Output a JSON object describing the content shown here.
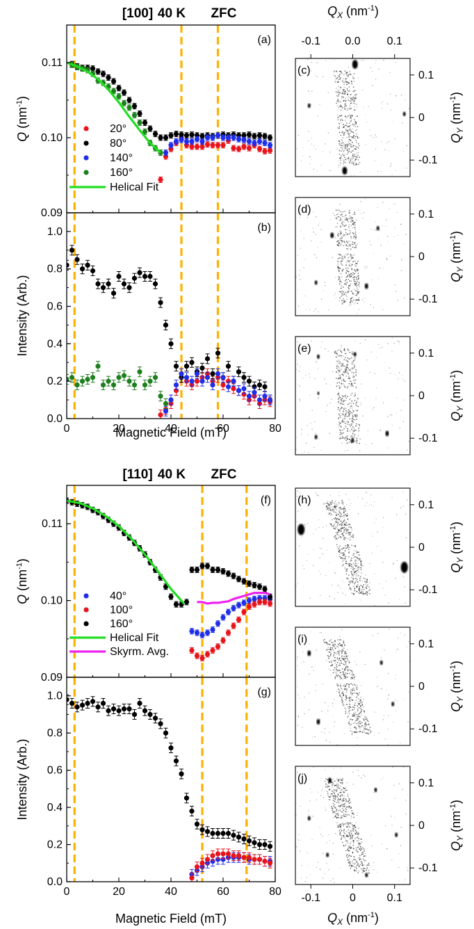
{
  "figure": {
    "headers": [
      {
        "direction": "[100]",
        "temperature": "40 K",
        "protocol": "ZFC"
      },
      {
        "direction": "[110]",
        "temperature": "40 K",
        "protocol": "ZFC"
      }
    ],
    "xlabel": "Magnetic Field (mT)",
    "qx_label": "Q_X (nm^-1)",
    "qy_label": "Q_Y (nm^-1)",
    "q_ylabel": "Q (nm^-1)",
    "i_ylabel": "Intensity (Arb.)",
    "dashed_color": "#FFB000",
    "colors": {
      "red": "#E8141B",
      "black": "#000000",
      "blue": "#1F2EE8",
      "green": "#1E7F1E",
      "fit": "#22DD22",
      "skyrm": "#EE22EE"
    }
  },
  "chart_data": [
    {
      "id": "a",
      "type": "scatter",
      "panel_label": "(a)",
      "xlim": [
        0,
        80
      ],
      "ylim": [
        0.09,
        0.115
      ],
      "xticks": [],
      "yticks": [
        "0.09",
        "0.10",
        "0.11"
      ],
      "ytick_values": [
        0.09,
        0.1,
        0.11
      ],
      "dashed_x": [
        3,
        44,
        58
      ],
      "legend": [
        {
          "label": "20°",
          "color": "#E8141B",
          "kind": "marker"
        },
        {
          "label": "80°",
          "color": "#000000",
          "kind": "marker"
        },
        {
          "label": "140°",
          "color": "#1F2EE8",
          "kind": "marker"
        },
        {
          "label": "160°",
          "color": "#1E7F1E",
          "kind": "marker"
        },
        {
          "label": "Helical Fit",
          "color": "#22DD22",
          "kind": "line"
        }
      ],
      "series": [
        {
          "name": "20°",
          "color": "#E8141B",
          "x": [
            36,
            38,
            40,
            42,
            44,
            46,
            48,
            50,
            52,
            54,
            56,
            58,
            60,
            62,
            64,
            66,
            68,
            70,
            72,
            74,
            76,
            78
          ],
          "y": [
            0.0944,
            0.0975,
            0.0985,
            0.0993,
            0.1,
            0.099,
            0.0988,
            0.0988,
            0.0988,
            0.0991,
            0.099,
            0.099,
            0.099,
            0.0996,
            0.0986,
            0.0985,
            0.0988,
            0.0986,
            0.099,
            0.0985,
            0.0982,
            0.0983
          ]
        },
        {
          "name": "80°",
          "color": "#000000",
          "x": [
            2,
            4,
            6,
            8,
            10,
            12,
            14,
            16,
            18,
            20,
            22,
            24,
            26,
            28,
            30,
            32,
            34,
            36,
            38,
            40,
            42,
            44,
            46,
            48,
            50,
            52,
            54,
            56,
            58,
            60,
            62,
            64,
            66,
            68,
            70,
            72,
            74,
            76,
            78
          ],
          "y": [
            0.1098,
            0.1095,
            0.1093,
            0.1093,
            0.1092,
            0.1088,
            0.1085,
            0.108,
            0.1075,
            0.1066,
            0.106,
            0.105,
            0.1042,
            0.1032,
            0.102,
            0.1012,
            0.1005,
            0.1,
            0.1,
            0.1003,
            0.1005,
            0.1004,
            0.1003,
            0.1004,
            0.1003,
            0.1002,
            0.1003,
            0.1002,
            0.1003,
            0.1004,
            0.1003,
            0.1004,
            0.1003,
            0.1003,
            0.1004,
            0.1002,
            0.1003,
            0.1002,
            0.1
          ]
        },
        {
          "name": "140°",
          "color": "#1F2EE8",
          "x": [
            38,
            40,
            42,
            44,
            46,
            48,
            50,
            52,
            54,
            56,
            58,
            60,
            62,
            64,
            66,
            68,
            70,
            72,
            74,
            76,
            78
          ],
          "y": [
            0.098,
            0.099,
            0.0995,
            0.0997,
            0.0995,
            0.0995,
            0.0998,
            0.0995,
            0.1,
            0.1,
            0.1003,
            0.1,
            0.1,
            0.1,
            0.0998,
            0.0997,
            0.0995,
            0.0993,
            0.0995,
            0.0993,
            0.099
          ]
        },
        {
          "name": "160°",
          "color": "#1E7F1E",
          "x": [
            2,
            4,
            6,
            8,
            10,
            12,
            14,
            16,
            18,
            20,
            22,
            24,
            26,
            28,
            30,
            32,
            34,
            36
          ],
          "y": [
            0.1097,
            0.1094,
            0.1092,
            0.109,
            0.1085,
            0.1076,
            0.1073,
            0.1068,
            0.1062,
            0.1055,
            0.1046,
            0.104,
            0.103,
            0.102,
            0.1008,
            0.0993,
            0.0986,
            0.098
          ]
        },
        {
          "name": "Helical Fit",
          "color": "#22DD22",
          "kind": "line",
          "x": [
            0,
            4,
            8,
            12,
            16,
            20,
            24,
            28,
            32,
            36
          ],
          "y": [
            0.11,
            0.1095,
            0.1088,
            0.1078,
            0.1064,
            0.1047,
            0.1028,
            0.101,
            0.0993,
            0.098
          ]
        }
      ]
    },
    {
      "id": "b",
      "type": "scatter",
      "panel_label": "(b)",
      "xlim": [
        0,
        80
      ],
      "ylim": [
        0,
        1.1
      ],
      "xticks": [
        "0",
        "20",
        "40",
        "60",
        "80"
      ],
      "xtick_values": [
        0,
        20,
        40,
        60,
        80
      ],
      "yticks": [
        "0.0",
        "0.2",
        "0.4",
        "0.6",
        "0.8",
        "1.0"
      ],
      "ytick_values": [
        0,
        0.2,
        0.4,
        0.6,
        0.8,
        1.0
      ],
      "dashed_x": [
        3,
        44,
        58
      ],
      "series": [
        {
          "name": "20°",
          "color": "#E8141B",
          "x": [
            36,
            38,
            40,
            42,
            44,
            46,
            48,
            50,
            52,
            54,
            56,
            58,
            60,
            62,
            64,
            66,
            68,
            70,
            72,
            74,
            76,
            78
          ],
          "y": [
            0.02,
            0.05,
            0.08,
            0.15,
            0.22,
            0.2,
            0.18,
            0.2,
            0.22,
            0.24,
            0.2,
            0.22,
            0.18,
            0.2,
            0.16,
            0.15,
            0.13,
            0.1,
            0.12,
            0.08,
            0.1,
            0.09
          ]
        },
        {
          "name": "80°",
          "color": "#000000",
          "x": [
            0,
            2,
            4,
            6,
            8,
            10,
            12,
            14,
            16,
            18,
            20,
            22,
            24,
            26,
            28,
            30,
            32,
            34,
            36,
            38,
            40,
            42,
            44,
            46,
            48,
            50,
            52,
            54,
            56,
            58,
            60,
            62,
            64,
            66,
            68,
            70,
            72,
            74,
            76,
            78
          ],
          "y": [
            0.82,
            0.9,
            0.85,
            0.8,
            0.82,
            0.79,
            0.72,
            0.7,
            0.72,
            0.67,
            0.76,
            0.72,
            0.7,
            0.75,
            0.78,
            0.76,
            0.76,
            0.72,
            0.62,
            0.5,
            0.4,
            0.28,
            0.22,
            0.28,
            0.3,
            0.25,
            0.27,
            0.32,
            0.24,
            0.35,
            0.22,
            0.28,
            0.2,
            0.25,
            0.22,
            0.2,
            0.17,
            0.18,
            0.17,
            0.1
          ]
        },
        {
          "name": "140°",
          "color": "#1F2EE8",
          "x": [
            38,
            40,
            42,
            44,
            46,
            48,
            50,
            52,
            54,
            56,
            58,
            60,
            62,
            64,
            66,
            68,
            70,
            72,
            74,
            76,
            78
          ],
          "y": [
            0.04,
            0.1,
            0.18,
            0.24,
            0.22,
            0.2,
            0.24,
            0.2,
            0.22,
            0.18,
            0.24,
            0.22,
            0.17,
            0.2,
            0.15,
            0.16,
            0.12,
            0.14,
            0.1,
            0.12,
            0.1
          ]
        },
        {
          "name": "160°",
          "color": "#1E7F1E",
          "x": [
            0,
            2,
            4,
            6,
            8,
            10,
            12,
            14,
            16,
            18,
            20,
            22,
            24,
            26,
            28,
            30,
            32,
            34,
            36,
            38
          ],
          "y": [
            0.21,
            0.22,
            0.18,
            0.2,
            0.21,
            0.22,
            0.28,
            0.18,
            0.2,
            0.18,
            0.22,
            0.23,
            0.2,
            0.18,
            0.25,
            0.18,
            0.2,
            0.22,
            0.12,
            0.08
          ]
        }
      ]
    },
    {
      "id": "f",
      "type": "scatter",
      "panel_label": "(f)",
      "xlim": [
        0,
        80
      ],
      "ylim": [
        0.09,
        0.115
      ],
      "xticks": [],
      "yticks": [
        "0.09",
        "0.10",
        "0.11"
      ],
      "ytick_values": [
        0.09,
        0.1,
        0.11
      ],
      "dashed_x": [
        3,
        52,
        69
      ],
      "legend": [
        {
          "label": "40°",
          "color": "#1F2EE8",
          "kind": "marker"
        },
        {
          "label": "100°",
          "color": "#E8141B",
          "kind": "marker"
        },
        {
          "label": "160°",
          "color": "#000000",
          "kind": "marker"
        },
        {
          "label": "Helical Fit",
          "color": "#22DD22",
          "kind": "line"
        },
        {
          "label": "Skyrm. Avg.",
          "color": "#EE22EE",
          "kind": "line"
        }
      ],
      "series": [
        {
          "name": "40°",
          "color": "#1F2EE8",
          "x": [
            48,
            50,
            52,
            54,
            56,
            58,
            60,
            62,
            64,
            66,
            68,
            70,
            72,
            74,
            76,
            78
          ],
          "y": [
            0.096,
            0.0958,
            0.0955,
            0.0958,
            0.0962,
            0.097,
            0.0978,
            0.0985,
            0.099,
            0.0994,
            0.0997,
            0.1,
            0.1002,
            0.1003,
            0.1003,
            0.1002
          ]
        },
        {
          "name": "100°",
          "color": "#E8141B",
          "x": [
            48,
            50,
            52,
            54,
            56,
            58,
            60,
            62,
            64,
            66,
            68,
            70,
            72,
            74,
            76,
            78
          ],
          "y": [
            0.0935,
            0.0928,
            0.0925,
            0.093,
            0.0935,
            0.094,
            0.0948,
            0.0958,
            0.0967,
            0.0975,
            0.0985,
            0.0992,
            0.0995,
            0.0998,
            0.0998,
            0.0996
          ]
        },
        {
          "name": "160°",
          "color": "#000000",
          "x": [
            0,
            2,
            4,
            6,
            8,
            10,
            12,
            14,
            16,
            18,
            20,
            22,
            24,
            26,
            28,
            30,
            32,
            34,
            36,
            38,
            40,
            42,
            44,
            46,
            48,
            50,
            52,
            54,
            56,
            58,
            60,
            62,
            64,
            66,
            68,
            70,
            72,
            74,
            76,
            78
          ],
          "y": [
            0.113,
            0.1128,
            0.1126,
            0.1124,
            0.1122,
            0.1118,
            0.1115,
            0.111,
            0.1105,
            0.11,
            0.1095,
            0.1088,
            0.1082,
            0.1075,
            0.1068,
            0.106,
            0.105,
            0.104,
            0.103,
            0.1018,
            0.1005,
            0.0995,
            0.0995,
            0.0998,
            0.104,
            0.104,
            0.1045,
            0.1045,
            0.104,
            0.104,
            0.1038,
            0.1035,
            0.1032,
            0.1028,
            0.1025,
            0.1022,
            0.102,
            0.1018,
            0.1015,
            0.1005
          ]
        },
        {
          "name": "Helical Fit",
          "color": "#22DD22",
          "kind": "line",
          "x": [
            0,
            5,
            10,
            15,
            20,
            25,
            30,
            35,
            40,
            45
          ],
          "y": [
            0.113,
            0.1127,
            0.112,
            0.111,
            0.1097,
            0.108,
            0.106,
            0.1038,
            0.1015,
            0.0996
          ]
        },
        {
          "name": "Skyrm. Avg.",
          "color": "#EE22EE",
          "kind": "line",
          "x": [
            50,
            52,
            54,
            56,
            58,
            60,
            62,
            64,
            66,
            68,
            70,
            72,
            74,
            76,
            78
          ],
          "y": [
            0.0998,
            0.0998,
            0.0996,
            0.0997,
            0.0997,
            0.0998,
            0.0999,
            0.1002,
            0.1004,
            0.1006,
            0.1008,
            0.101,
            0.101,
            0.101,
            0.1008
          ]
        }
      ]
    },
    {
      "id": "g",
      "type": "scatter",
      "panel_label": "(g)",
      "xlim": [
        0,
        80
      ],
      "ylim": [
        0,
        1.1
      ],
      "xticks": [
        "0",
        "20",
        "40",
        "60",
        "80"
      ],
      "xtick_values": [
        0,
        20,
        40,
        60,
        80
      ],
      "yticks": [
        "0.0",
        "0.2",
        "0.4",
        "0.6",
        "0.8",
        "1.0"
      ],
      "ytick_values": [
        0,
        0.2,
        0.4,
        0.6,
        0.8,
        1.0
      ],
      "dashed_x": [
        3,
        52,
        69
      ],
      "series": [
        {
          "name": "160°",
          "color": "#000000",
          "x": [
            0,
            2,
            4,
            6,
            8,
            10,
            12,
            14,
            16,
            18,
            20,
            22,
            24,
            26,
            28,
            30,
            32,
            34,
            36,
            38,
            40,
            42,
            44,
            46,
            48,
            50,
            52,
            54,
            56,
            58,
            60,
            62,
            64,
            66,
            68,
            70,
            72,
            74,
            76,
            78
          ],
          "y": [
            0.98,
            0.96,
            0.94,
            0.95,
            0.96,
            0.97,
            0.94,
            0.96,
            0.92,
            0.93,
            0.92,
            0.93,
            0.93,
            0.9,
            0.96,
            0.92,
            0.9,
            0.88,
            0.85,
            0.8,
            0.72,
            0.65,
            0.58,
            0.45,
            0.38,
            0.31,
            0.28,
            0.27,
            0.26,
            0.26,
            0.26,
            0.26,
            0.25,
            0.24,
            0.23,
            0.22,
            0.21,
            0.2,
            0.2,
            0.19
          ]
        },
        {
          "name": "40°",
          "color": "#1F2EE8",
          "x": [
            48,
            50,
            52,
            54,
            56,
            58,
            60,
            62,
            64,
            66,
            68,
            70,
            72,
            74,
            76,
            78
          ],
          "y": [
            0.04,
            0.06,
            0.08,
            0.1,
            0.11,
            0.12,
            0.12,
            0.13,
            0.13,
            0.13,
            0.13,
            0.12,
            0.12,
            0.12,
            0.11,
            0.11
          ]
        },
        {
          "name": "100°",
          "color": "#E8141B",
          "x": [
            48,
            50,
            52,
            54,
            56,
            58,
            60,
            62,
            64,
            66,
            68,
            70,
            72,
            74,
            76,
            78
          ],
          "y": [
            0.02,
            0.08,
            0.1,
            0.12,
            0.14,
            0.15,
            0.15,
            0.15,
            0.14,
            0.14,
            0.13,
            0.13,
            0.12,
            0.12,
            0.11,
            0.1
          ]
        }
      ]
    }
  ],
  "detectors": {
    "panels": [
      "(c)",
      "(d)",
      "(e)",
      "(h)",
      "(i)",
      "(j)"
    ],
    "qx_ticks_top": [
      "-0.1",
      "0.0",
      "0.1"
    ],
    "qx_ticks_bottom": [
      "-0.1",
      "0",
      "0.1"
    ],
    "qy_ticks": [
      "0.1",
      "0",
      "-0.1"
    ]
  }
}
